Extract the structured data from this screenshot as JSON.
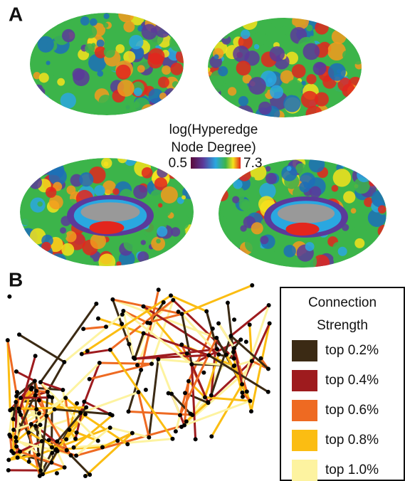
{
  "panel_a": {
    "label": "A",
    "colorbar": {
      "title_lines": [
        "log(Hyperedge",
        "Node Degree)"
      ],
      "min": 0.5,
      "max": 7.3
    }
  },
  "panel_b": {
    "label": "B",
    "legend": {
      "title_lines": [
        "Connection",
        "Strength"
      ],
      "items": [
        {
          "label": "top 0.2%",
          "color": "#3b2a14"
        },
        {
          "label": "top 0.4%",
          "color": "#9e1b1e"
        },
        {
          "label": "top 0.6%",
          "color": "#ee6a22"
        },
        {
          "label": "top 0.8%",
          "color": "#fbbd12"
        },
        {
          "label": "top 1.0%",
          "color": "#fdf3a0"
        }
      ]
    }
  }
}
